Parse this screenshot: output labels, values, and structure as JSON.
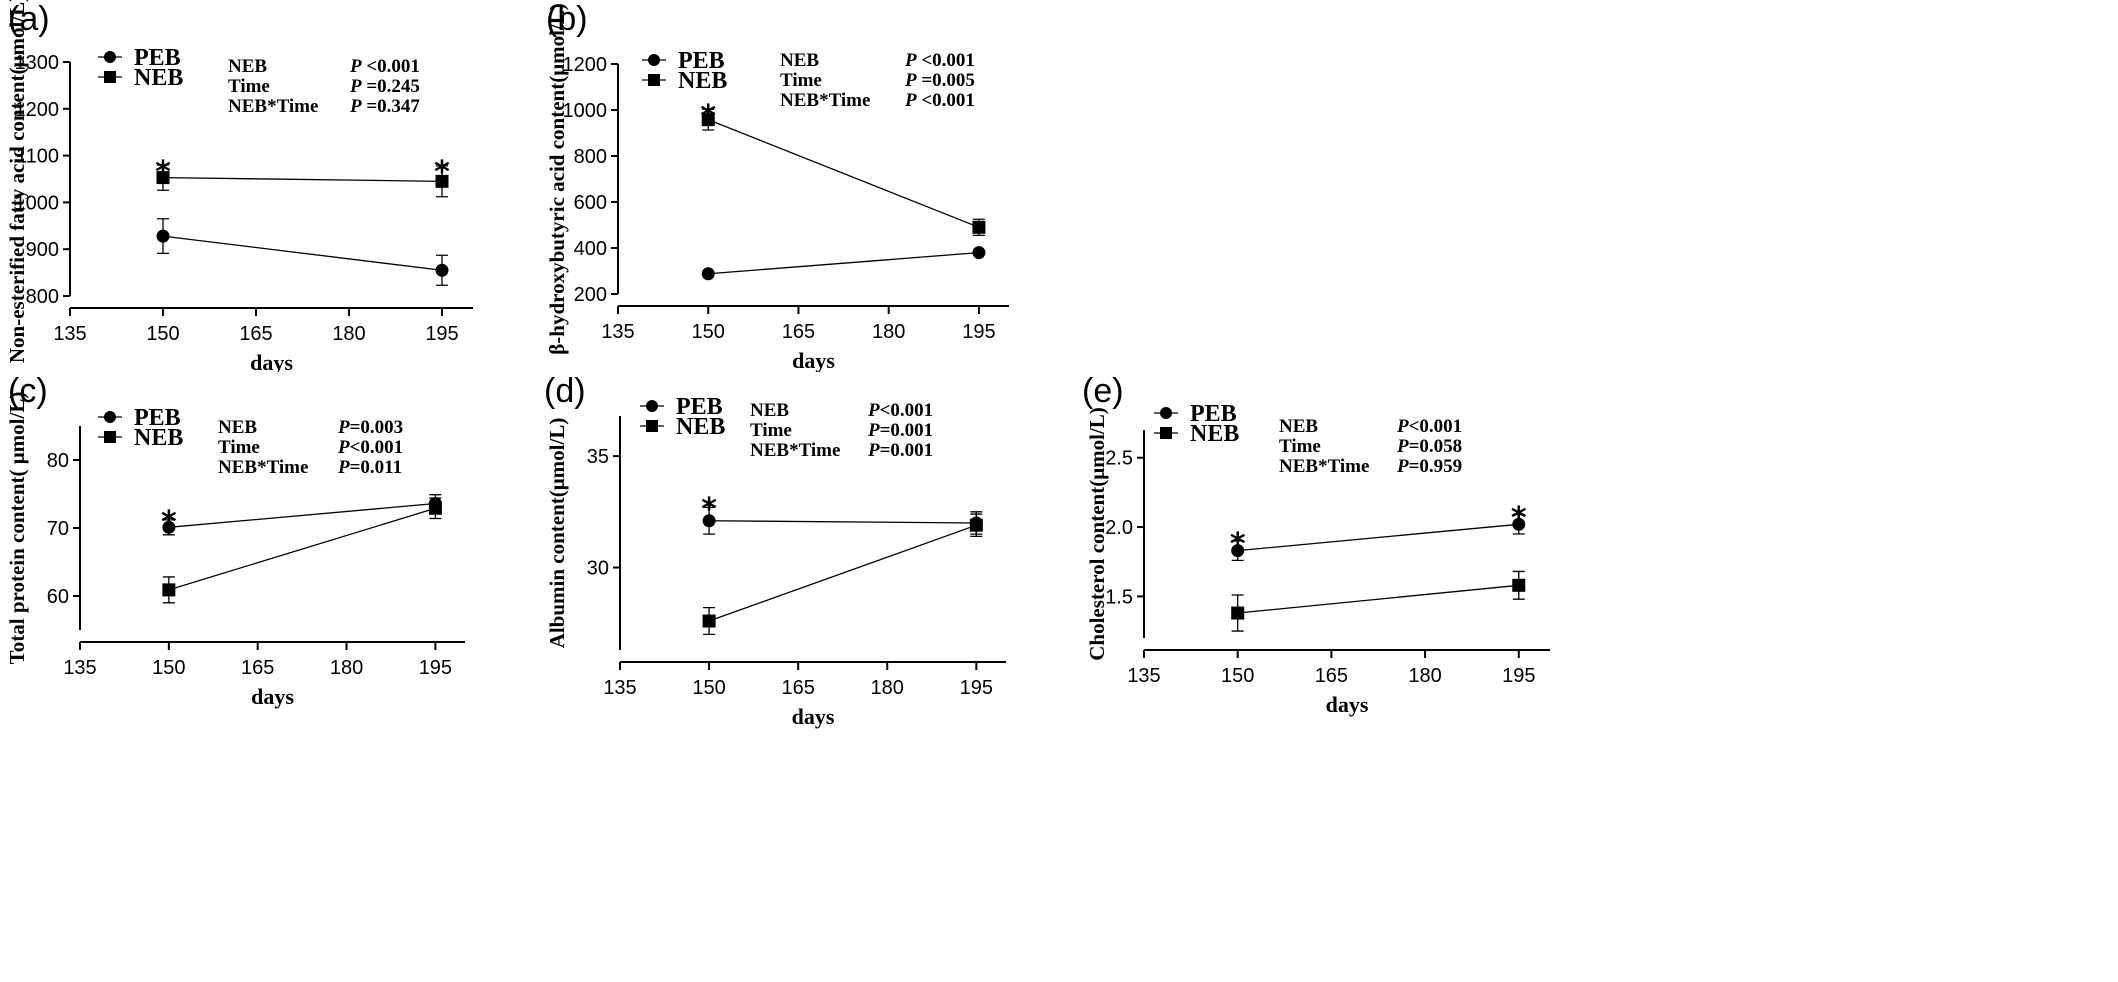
{
  "chart_data": [
    {
      "panel_label": "(a)",
      "type": "line",
      "xlabel": "days",
      "ylabel": "Non-esterified fatty acid content(μmol/L)",
      "xlim": [
        135,
        200
      ],
      "xticks": [
        135,
        150,
        165,
        180,
        195
      ],
      "xtick_labels": [
        "135",
        "150",
        "165",
        "180",
        "195"
      ],
      "ylim": [
        800,
        1300
      ],
      "yticks": [
        800,
        900,
        1000,
        1100,
        1200,
        1300
      ],
      "ytick_labels": [
        "800",
        "900",
        "1000",
        "1100",
        "1200",
        "1300"
      ],
      "series": [
        {
          "name": "PEB",
          "marker": "circle",
          "x": [
            150,
            195
          ],
          "y": [
            928,
            855
          ],
          "err": [
            37,
            32
          ]
        },
        {
          "name": "NEB",
          "marker": "square",
          "x": [
            150,
            195
          ],
          "y": [
            1053,
            1045
          ],
          "err": [
            27,
            33
          ]
        }
      ],
      "significance": [
        {
          "x": 150,
          "y": 1078,
          "text": "*"
        },
        {
          "x": 195,
          "y": 1078,
          "text": "*"
        }
      ],
      "stats": [
        {
          "label": "NEB",
          "p_symbol": "P",
          "p_value": " <0.001"
        },
        {
          "label": "Time",
          "p_symbol": "P",
          "p_value": " =0.245"
        },
        {
          "label": "NEB*Time",
          "p_symbol": "P",
          "p_value": " =0.347"
        }
      ]
    },
    {
      "panel_label": "(b)",
      "type": "line",
      "xlabel": "days",
      "ylabel": "β-hydroxybutyric acid content(μmol/L)",
      "xlim": [
        135,
        200
      ],
      "xticks": [
        135,
        150,
        165,
        180,
        195
      ],
      "xtick_labels": [
        "135",
        "150",
        "165",
        "180",
        "195"
      ],
      "ylim": [
        200,
        1200
      ],
      "yticks": [
        200,
        400,
        600,
        800,
        1000,
        1200
      ],
      "ytick_labels": [
        "200",
        "400",
        "600",
        "800",
        "1000",
        "1200"
      ],
      "series": [
        {
          "name": "PEB",
          "marker": "circle",
          "x": [
            150,
            195
          ],
          "y": [
            288,
            380
          ],
          "err": [
            0,
            0
          ]
        },
        {
          "name": "NEB",
          "marker": "square",
          "x": [
            150,
            195
          ],
          "y": [
            958,
            490
          ],
          "err": [
            45,
            35
          ]
        }
      ],
      "significance": [
        {
          "x": 150,
          "y": 1000,
          "text": "*"
        }
      ],
      "stats": [
        {
          "label": "NEB",
          "p_symbol": "P",
          "p_value": " <0.001"
        },
        {
          "label": "Time",
          "p_symbol": "P",
          "p_value": " =0.005"
        },
        {
          "label": "NEB*Time",
          "p_symbol": "P",
          "p_value": " <0.001"
        }
      ]
    },
    {
      "panel_label": "(c)",
      "type": "line",
      "xlabel": "days",
      "ylabel": "Total protein content( μmol/L)",
      "xlim": [
        135,
        200
      ],
      "xticks": [
        135,
        150,
        165,
        180,
        195
      ],
      "xtick_labels": [
        "135",
        "150",
        "165",
        "180",
        "195"
      ],
      "ylim": [
        55,
        85
      ],
      "yticks": [
        60,
        70,
        80
      ],
      "ytick_labels": [
        "60",
        "70",
        "80"
      ],
      "series": [
        {
          "name": "PEB",
          "marker": "circle",
          "x": [
            150,
            195
          ],
          "y": [
            70.1,
            73.6
          ],
          "err": [
            1.1,
            1.3
          ]
        },
        {
          "name": "NEB",
          "marker": "square",
          "x": [
            150,
            195
          ],
          "y": [
            60.9,
            72.9
          ],
          "err": [
            1.9,
            1.5
          ]
        }
      ],
      "significance": [
        {
          "x": 150,
          "y": 71.8,
          "text": "*"
        }
      ],
      "stats": [
        {
          "label": "NEB",
          "p_symbol": "P",
          "p_value": "=0.003"
        },
        {
          "label": "Time",
          "p_symbol": "P",
          "p_value": "<0.001"
        },
        {
          "label": "NEB*Time",
          "p_symbol": "P",
          "p_value": "=0.011"
        }
      ]
    },
    {
      "panel_label": "(d)",
      "type": "line",
      "xlabel": "days",
      "ylabel": "Albumin content(μmol/L)",
      "xlim": [
        135,
        200
      ],
      "xticks": [
        135,
        150,
        165,
        180,
        195
      ],
      "xtick_labels": [
        "135",
        "150",
        "165",
        "180",
        "195"
      ],
      "ylim": [
        26.3,
        36.8
      ],
      "yticks": [
        30,
        35
      ],
      "ytick_labels": [
        "30",
        "35"
      ],
      "series": [
        {
          "name": "PEB",
          "marker": "circle",
          "x": [
            150,
            195
          ],
          "y": [
            32.1,
            32.0
          ],
          "err": [
            0.6,
            0.5
          ]
        },
        {
          "name": "NEB",
          "marker": "square",
          "x": [
            150,
            195
          ],
          "y": [
            27.6,
            31.9
          ],
          "err": [
            0.6,
            0.5
          ]
        }
      ],
      "significance": [
        {
          "x": 150,
          "y": 32.9,
          "text": "*"
        }
      ],
      "stats": [
        {
          "label": "NEB",
          "p_symbol": "P",
          "p_value": "<0.001"
        },
        {
          "label": "Time",
          "p_symbol": "P",
          "p_value": "=0.001"
        },
        {
          "label": "NEB*Time",
          "p_symbol": "P",
          "p_value": "=0.001"
        }
      ]
    },
    {
      "panel_label": "(e)",
      "type": "line",
      "xlabel": "days",
      "ylabel": "Cholesterol content(μmol/L)",
      "xlim": [
        135,
        200
      ],
      "xticks": [
        135,
        150,
        165,
        180,
        195
      ],
      "xtick_labels": [
        "135",
        "150",
        "165",
        "180",
        "195"
      ],
      "ylim": [
        1.2,
        2.7
      ],
      "yticks": [
        1.5,
        2.0,
        2.5
      ],
      "ytick_labels": [
        "1.5",
        "2.0",
        "2.5"
      ],
      "series": [
        {
          "name": "PEB",
          "marker": "circle",
          "x": [
            150,
            195
          ],
          "y": [
            1.83,
            2.02
          ],
          "err": [
            0.07,
            0.07
          ]
        },
        {
          "name": "NEB",
          "marker": "square",
          "x": [
            150,
            195
          ],
          "y": [
            1.38,
            1.58
          ],
          "err": [
            0.13,
            0.1
          ]
        }
      ],
      "significance": [
        {
          "x": 150,
          "y": 1.92,
          "text": "*"
        },
        {
          "x": 195,
          "y": 2.11,
          "text": "*"
        }
      ],
      "stats": [
        {
          "label": "NEB",
          "p_symbol": "P",
          "p_value": "<0.001"
        },
        {
          "label": "Time",
          "p_symbol": "P",
          "p_value": "=0.058"
        },
        {
          "label": "NEB*Time",
          "p_symbol": "P",
          "p_value": "=0.959"
        }
      ]
    }
  ]
}
